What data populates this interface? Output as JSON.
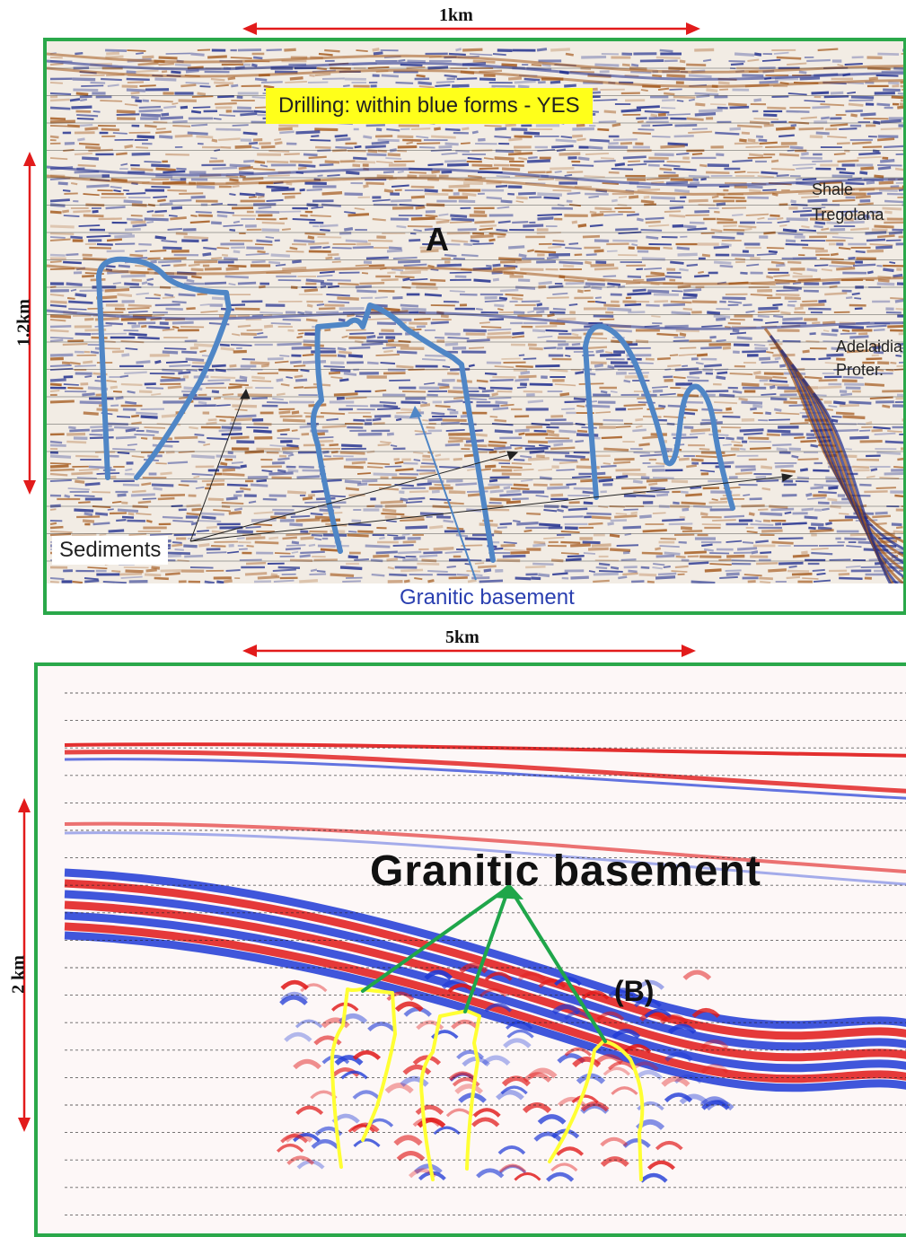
{
  "top_panel": {
    "scale_top": "1km",
    "scale_left": "1.2km",
    "banner": "Drilling:  within blue forms - YES",
    "marker": "A",
    "formation_1a": "Shale",
    "formation_1b": "Tregolana",
    "formation_2a": "Adelaidia",
    "formation_2b": "Proter.",
    "sediments_label": "Sediments",
    "basement_label": "Granitic basement"
  },
  "bottom_panel": {
    "scale_top": "5km",
    "scale_left": "2 km",
    "basement_label": "Granitic basement",
    "marker": "(B)"
  },
  "colors": {
    "frame": "#2aa84a",
    "scale_arrow": "#e21b1b",
    "blue_outline": "#4f86c6",
    "yellow_outline": "#ffff33",
    "green_arrow": "#1fa64a",
    "banner": "#ffff1a",
    "seismic_positive": "#1b2a8c",
    "seismic_negative": "#a3571a",
    "seismic_positive_2": "#1f3ad6",
    "seismic_negative_2": "#e01818"
  }
}
